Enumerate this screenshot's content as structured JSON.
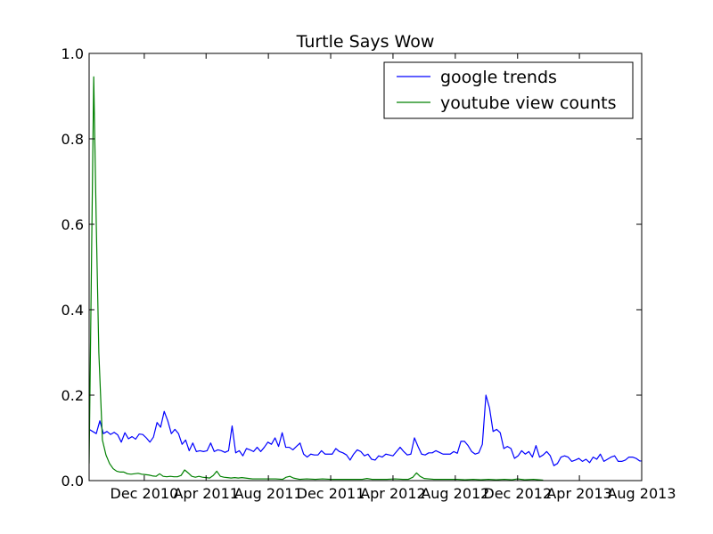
{
  "chart_data": {
    "type": "line",
    "title": "Turtle Says Wow",
    "xlabel": "",
    "ylabel": "",
    "ylim": [
      0,
      1.0
    ],
    "xlim": [
      "2010-08-15",
      "2013-08-01"
    ],
    "x_ticks": [
      {
        "label": "Dec 2010",
        "date": "2010-12-01"
      },
      {
        "label": "Apr 2011",
        "date": "2011-04-01"
      },
      {
        "label": "Aug 2011",
        "date": "2011-08-01"
      },
      {
        "label": "Dec 2011",
        "date": "2011-12-01"
      },
      {
        "label": "Apr 2012",
        "date": "2012-04-01"
      },
      {
        "label": "Aug 2012",
        "date": "2012-08-01"
      },
      {
        "label": "Dec 2012",
        "date": "2012-12-01"
      },
      {
        "label": "Apr 2013",
        "date": "2013-04-01"
      },
      {
        "label": "Aug 2013",
        "date": "2013-08-01"
      }
    ],
    "y_ticks": [
      "0.0",
      "0.2",
      "0.4",
      "0.6",
      "0.8",
      "1.0"
    ],
    "grid": false,
    "legend_position": "top-right",
    "series": [
      {
        "name": "google trends",
        "color": "#0000ff",
        "points": [
          [
            "2010-08-15",
            0.12
          ],
          [
            "2010-08-29",
            0.11
          ],
          [
            "2010-09-05",
            0.14
          ],
          [
            "2010-09-12",
            0.11
          ],
          [
            "2010-09-19",
            0.115
          ],
          [
            "2010-09-26",
            0.108
          ],
          [
            "2010-10-03",
            0.113
          ],
          [
            "2010-10-10",
            0.107
          ],
          [
            "2010-10-17",
            0.09
          ],
          [
            "2010-10-24",
            0.112
          ],
          [
            "2010-10-31",
            0.098
          ],
          [
            "2010-11-07",
            0.103
          ],
          [
            "2010-11-14",
            0.097
          ],
          [
            "2010-11-21",
            0.109
          ],
          [
            "2010-11-28",
            0.108
          ],
          [
            "2010-12-05",
            0.1
          ],
          [
            "2010-12-12",
            0.09
          ],
          [
            "2010-12-19",
            0.102
          ],
          [
            "2010-12-26",
            0.136
          ],
          [
            "2011-01-02",
            0.125
          ],
          [
            "2011-01-09",
            0.162
          ],
          [
            "2011-01-16",
            0.14
          ],
          [
            "2011-01-23",
            0.11
          ],
          [
            "2011-01-30",
            0.12
          ],
          [
            "2011-02-06",
            0.11
          ],
          [
            "2011-02-13",
            0.085
          ],
          [
            "2011-02-20",
            0.095
          ],
          [
            "2011-02-27",
            0.07
          ],
          [
            "2011-03-06",
            0.088
          ],
          [
            "2011-03-13",
            0.068
          ],
          [
            "2011-03-20",
            0.07
          ],
          [
            "2011-03-27",
            0.068
          ],
          [
            "2011-04-03",
            0.07
          ],
          [
            "2011-04-10",
            0.088
          ],
          [
            "2011-04-17",
            0.068
          ],
          [
            "2011-04-24",
            0.072
          ],
          [
            "2011-05-01",
            0.07
          ],
          [
            "2011-05-08",
            0.066
          ],
          [
            "2011-05-15",
            0.07
          ],
          [
            "2011-05-22",
            0.128
          ],
          [
            "2011-05-29",
            0.065
          ],
          [
            "2011-06-05",
            0.07
          ],
          [
            "2011-06-12",
            0.058
          ],
          [
            "2011-06-19",
            0.075
          ],
          [
            "2011-06-26",
            0.072
          ],
          [
            "2011-07-03",
            0.068
          ],
          [
            "2011-07-10",
            0.078
          ],
          [
            "2011-07-17",
            0.068
          ],
          [
            "2011-07-24",
            0.078
          ],
          [
            "2011-07-31",
            0.09
          ],
          [
            "2011-08-07",
            0.085
          ],
          [
            "2011-08-14",
            0.1
          ],
          [
            "2011-08-21",
            0.08
          ],
          [
            "2011-08-28",
            0.112
          ],
          [
            "2011-09-04",
            0.078
          ],
          [
            "2011-09-11",
            0.078
          ],
          [
            "2011-09-18",
            0.072
          ],
          [
            "2011-09-25",
            0.08
          ],
          [
            "2011-10-02",
            0.088
          ],
          [
            "2011-10-09",
            0.062
          ],
          [
            "2011-10-16",
            0.055
          ],
          [
            "2011-10-23",
            0.062
          ],
          [
            "2011-10-30",
            0.06
          ],
          [
            "2011-11-06",
            0.06
          ],
          [
            "2011-11-13",
            0.07
          ],
          [
            "2011-11-20",
            0.062
          ],
          [
            "2011-11-27",
            0.062
          ],
          [
            "2011-12-04",
            0.062
          ],
          [
            "2011-12-11",
            0.075
          ],
          [
            "2011-12-18",
            0.068
          ],
          [
            "2011-12-25",
            0.065
          ],
          [
            "2012-01-01",
            0.06
          ],
          [
            "2012-01-08",
            0.048
          ],
          [
            "2012-01-15",
            0.062
          ],
          [
            "2012-01-22",
            0.072
          ],
          [
            "2012-01-29",
            0.068
          ],
          [
            "2012-02-05",
            0.058
          ],
          [
            "2012-02-12",
            0.062
          ],
          [
            "2012-02-19",
            0.05
          ],
          [
            "2012-02-26",
            0.048
          ],
          [
            "2012-03-04",
            0.058
          ],
          [
            "2012-03-11",
            0.055
          ],
          [
            "2012-03-18",
            0.062
          ],
          [
            "2012-03-25",
            0.06
          ],
          [
            "2012-04-01",
            0.058
          ],
          [
            "2012-04-08",
            0.068
          ],
          [
            "2012-04-15",
            0.078
          ],
          [
            "2012-04-22",
            0.068
          ],
          [
            "2012-04-29",
            0.06
          ],
          [
            "2012-05-06",
            0.062
          ],
          [
            "2012-05-13",
            0.1
          ],
          [
            "2012-05-20",
            0.08
          ],
          [
            "2012-05-27",
            0.062
          ],
          [
            "2012-06-03",
            0.06
          ],
          [
            "2012-06-10",
            0.065
          ],
          [
            "2012-06-17",
            0.065
          ],
          [
            "2012-06-24",
            0.07
          ],
          [
            "2012-07-01",
            0.066
          ],
          [
            "2012-07-08",
            0.062
          ],
          [
            "2012-07-15",
            0.062
          ],
          [
            "2012-07-22",
            0.062
          ],
          [
            "2012-07-29",
            0.068
          ],
          [
            "2012-08-05",
            0.064
          ],
          [
            "2012-08-12",
            0.092
          ],
          [
            "2012-08-19",
            0.092
          ],
          [
            "2012-08-26",
            0.082
          ],
          [
            "2012-09-02",
            0.068
          ],
          [
            "2012-09-09",
            0.062
          ],
          [
            "2012-09-16",
            0.065
          ],
          [
            "2012-09-23",
            0.085
          ],
          [
            "2012-09-30",
            0.2
          ],
          [
            "2012-10-07",
            0.17
          ],
          [
            "2012-10-14",
            0.115
          ],
          [
            "2012-10-21",
            0.12
          ],
          [
            "2012-10-28",
            0.112
          ],
          [
            "2012-11-04",
            0.075
          ],
          [
            "2012-11-11",
            0.08
          ],
          [
            "2012-11-18",
            0.075
          ],
          [
            "2012-11-25",
            0.052
          ],
          [
            "2012-12-02",
            0.058
          ],
          [
            "2012-12-09",
            0.07
          ],
          [
            "2012-12-16",
            0.062
          ],
          [
            "2012-12-23",
            0.068
          ],
          [
            "2012-12-30",
            0.055
          ],
          [
            "2013-01-06",
            0.082
          ],
          [
            "2013-01-13",
            0.055
          ],
          [
            "2013-01-20",
            0.06
          ],
          [
            "2013-01-27",
            0.068
          ],
          [
            "2013-02-03",
            0.058
          ],
          [
            "2013-02-10",
            0.035
          ],
          [
            "2013-02-17",
            0.04
          ],
          [
            "2013-02-24",
            0.055
          ],
          [
            "2013-03-03",
            0.058
          ],
          [
            "2013-03-10",
            0.055
          ],
          [
            "2013-03-17",
            0.045
          ],
          [
            "2013-03-24",
            0.048
          ],
          [
            "2013-03-31",
            0.052
          ],
          [
            "2013-04-07",
            0.045
          ],
          [
            "2013-04-14",
            0.05
          ],
          [
            "2013-04-21",
            0.042
          ],
          [
            "2013-04-28",
            0.055
          ],
          [
            "2013-05-05",
            0.05
          ],
          [
            "2013-05-12",
            0.062
          ],
          [
            "2013-05-19",
            0.045
          ],
          [
            "2013-05-26",
            0.05
          ],
          [
            "2013-06-02",
            0.055
          ],
          [
            "2013-06-09",
            0.058
          ],
          [
            "2013-06-16",
            0.045
          ],
          [
            "2013-06-23",
            0.045
          ],
          [
            "2013-06-30",
            0.048
          ],
          [
            "2013-07-07",
            0.055
          ],
          [
            "2013-07-14",
            0.055
          ],
          [
            "2013-07-21",
            0.052
          ],
          [
            "2013-07-28",
            0.046
          ],
          [
            "2013-08-01",
            0.046
          ]
        ]
      },
      {
        "name": "youtube view counts",
        "color": "#008000",
        "points": [
          [
            "2010-08-15",
            0.04
          ],
          [
            "2010-08-20",
            0.55
          ],
          [
            "2010-08-24",
            0.945
          ],
          [
            "2010-08-29",
            0.6
          ],
          [
            "2010-09-03",
            0.3
          ],
          [
            "2010-09-10",
            0.095
          ],
          [
            "2010-09-17",
            0.06
          ],
          [
            "2010-09-24",
            0.04
          ],
          [
            "2010-10-01",
            0.028
          ],
          [
            "2010-10-08",
            0.022
          ],
          [
            "2010-10-15",
            0.02
          ],
          [
            "2010-10-22",
            0.02
          ],
          [
            "2010-10-29",
            0.016
          ],
          [
            "2010-11-05",
            0.015
          ],
          [
            "2010-11-12",
            0.016
          ],
          [
            "2010-11-19",
            0.017
          ],
          [
            "2010-11-26",
            0.015
          ],
          [
            "2010-12-03",
            0.014
          ],
          [
            "2010-12-10",
            0.013
          ],
          [
            "2010-12-17",
            0.011
          ],
          [
            "2010-12-24",
            0.01
          ],
          [
            "2010-12-31",
            0.016
          ],
          [
            "2011-01-07",
            0.01
          ],
          [
            "2011-01-14",
            0.009
          ],
          [
            "2011-01-21",
            0.01
          ],
          [
            "2011-01-28",
            0.009
          ],
          [
            "2011-02-04",
            0.009
          ],
          [
            "2011-02-11",
            0.012
          ],
          [
            "2011-02-18",
            0.025
          ],
          [
            "2011-02-25",
            0.018
          ],
          [
            "2011-03-04",
            0.01
          ],
          [
            "2011-03-11",
            0.008
          ],
          [
            "2011-03-18",
            0.01
          ],
          [
            "2011-03-25",
            0.008
          ],
          [
            "2011-04-01",
            0.007
          ],
          [
            "2011-04-08",
            0.006
          ],
          [
            "2011-04-15",
            0.012
          ],
          [
            "2011-04-22",
            0.022
          ],
          [
            "2011-04-29",
            0.01
          ],
          [
            "2011-05-06",
            0.008
          ],
          [
            "2011-05-13",
            0.007
          ],
          [
            "2011-05-20",
            0.006
          ],
          [
            "2011-05-27",
            0.007
          ],
          [
            "2011-06-03",
            0.006
          ],
          [
            "2011-06-10",
            0.007
          ],
          [
            "2011-06-17",
            0.006
          ],
          [
            "2011-06-24",
            0.005
          ],
          [
            "2011-07-01",
            0.004
          ],
          [
            "2011-07-15",
            0.004
          ],
          [
            "2011-08-01",
            0.004
          ],
          [
            "2011-08-15",
            0.004
          ],
          [
            "2011-08-29",
            0.003
          ],
          [
            "2011-09-05",
            0.008
          ],
          [
            "2011-09-12",
            0.01
          ],
          [
            "2011-09-19",
            0.006
          ],
          [
            "2011-10-01",
            0.003
          ],
          [
            "2011-10-15",
            0.004
          ],
          [
            "2011-11-01",
            0.003
          ],
          [
            "2011-11-15",
            0.004
          ],
          [
            "2011-12-01",
            0.003
          ],
          [
            "2011-12-15",
            0.003
          ],
          [
            "2012-01-01",
            0.003
          ],
          [
            "2012-01-15",
            0.003
          ],
          [
            "2012-02-01",
            0.003
          ],
          [
            "2012-02-10",
            0.005
          ],
          [
            "2012-02-20",
            0.003
          ],
          [
            "2012-03-05",
            0.003
          ],
          [
            "2012-03-20",
            0.003
          ],
          [
            "2012-04-05",
            0.004
          ],
          [
            "2012-04-20",
            0.003
          ],
          [
            "2012-05-01",
            0.003
          ],
          [
            "2012-05-10",
            0.008
          ],
          [
            "2012-05-17",
            0.018
          ],
          [
            "2012-05-24",
            0.01
          ],
          [
            "2012-06-01",
            0.005
          ],
          [
            "2012-06-10",
            0.004
          ],
          [
            "2012-06-20",
            0.003
          ],
          [
            "2012-07-05",
            0.003
          ],
          [
            "2012-07-20",
            0.003
          ],
          [
            "2012-08-05",
            0.003
          ],
          [
            "2012-08-20",
            0.002
          ],
          [
            "2012-09-05",
            0.003
          ],
          [
            "2012-09-20",
            0.002
          ],
          [
            "2012-10-05",
            0.003
          ],
          [
            "2012-10-20",
            0.002
          ],
          [
            "2012-11-05",
            0.003
          ],
          [
            "2012-11-20",
            0.002
          ],
          [
            "2012-12-01",
            0.004
          ],
          [
            "2012-12-15",
            0.002
          ],
          [
            "2013-01-01",
            0.003
          ],
          [
            "2013-01-20",
            0.001
          ]
        ]
      }
    ]
  }
}
